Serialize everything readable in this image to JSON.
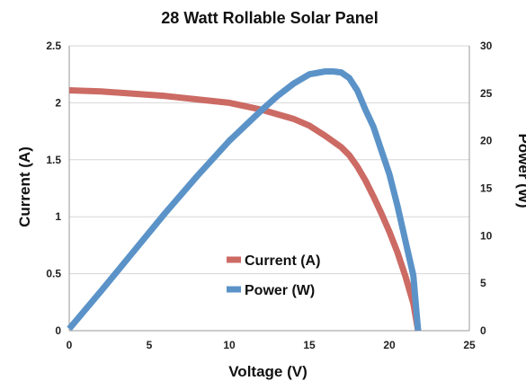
{
  "chart_data": {
    "type": "line",
    "title": "28 Watt Rollable Solar Panel",
    "xlabel": "Voltage (V)",
    "ylabel": "Current (A)",
    "y2label": "Power (W)",
    "xlim": [
      0,
      25
    ],
    "ylim": [
      0,
      2.5
    ],
    "y2lim": [
      0,
      30
    ],
    "xticks": [
      "0",
      "5",
      "10",
      "15",
      "20",
      "25"
    ],
    "yticks": [
      "0",
      "0.5",
      "1",
      "1.5",
      "2",
      "2.5"
    ],
    "y2ticks": [
      "0",
      "5",
      "10",
      "15",
      "20",
      "25",
      "30"
    ],
    "grid": true,
    "legend_position": "center",
    "series": [
      {
        "name": "Current (A)",
        "axis": "left",
        "color": "#cc6a64",
        "x": [
          0,
          2,
          4,
          6,
          8,
          10,
          11,
          12,
          13,
          14,
          15,
          16,
          17,
          17.5,
          18,
          18.5,
          19,
          19.5,
          20,
          20.5,
          21,
          21.5,
          21.8
        ],
        "y": [
          2.11,
          2.1,
          2.08,
          2.06,
          2.03,
          2.0,
          1.97,
          1.94,
          1.9,
          1.86,
          1.8,
          1.71,
          1.61,
          1.54,
          1.44,
          1.32,
          1.18,
          1.03,
          0.87,
          0.69,
          0.48,
          0.24,
          0.0
        ]
      },
      {
        "name": "Power (W)",
        "axis": "right",
        "color": "#5b93c8",
        "x": [
          0,
          2,
          4,
          6,
          8,
          10,
          11,
          12,
          13,
          14,
          15,
          16,
          16.5,
          17,
          17.5,
          18,
          18.5,
          19,
          19.5,
          20,
          20.5,
          21,
          21.5,
          21.8
        ],
        "y": [
          0.2,
          4.2,
          8.3,
          12.4,
          16.3,
          20.0,
          21.6,
          23.2,
          24.7,
          26.0,
          27.0,
          27.3,
          27.3,
          27.2,
          26.6,
          25.3,
          23.3,
          21.5,
          19.0,
          16.5,
          13.2,
          9.5,
          5.8,
          0.0
        ]
      }
    ]
  }
}
